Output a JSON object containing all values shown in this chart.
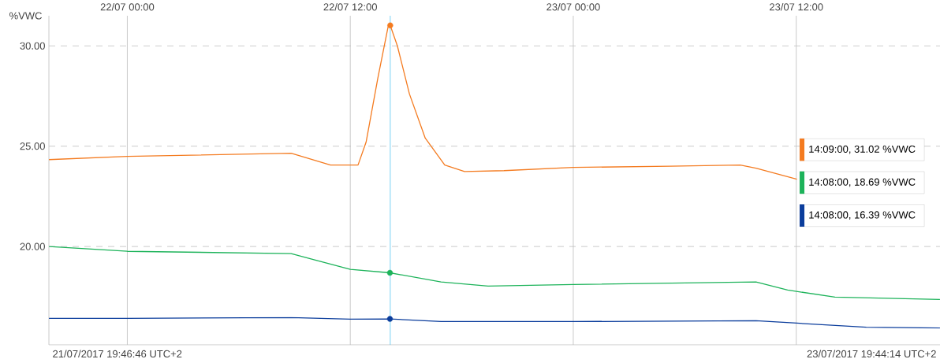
{
  "chart_data": {
    "type": "line",
    "ylabel": "%VWC",
    "series": [
      {
        "color": "#f47b20",
        "x": [
          "2017-07-21T19:47",
          "2017-07-22T00:00",
          "2017-07-22T08:49",
          "2017-07-22T10:56",
          "2017-07-22T12:25",
          "2017-07-22T12:51",
          "2017-07-22T13:29",
          "2017-07-22T14:02",
          "2017-07-22T14:09",
          "2017-07-22T14:32",
          "2017-07-22T15:11",
          "2017-07-22T16:02",
          "2017-07-22T17:05",
          "2017-07-22T18:09",
          "2017-07-22T20:16",
          "2017-07-23T00:00",
          "2017-07-23T05:10",
          "2017-07-23T08:59",
          "2017-07-23T09:50",
          "2017-07-23T12:02"
        ],
        "values": [
          24.33,
          24.49,
          24.65,
          24.06,
          24.06,
          25.2,
          28.4,
          30.95,
          31.02,
          30.0,
          27.6,
          25.4,
          24.06,
          23.74,
          23.78,
          23.94,
          24.0,
          24.06,
          23.9,
          23.35
        ]
      },
      {
        "color": "#1db35a",
        "x": [
          "2017-07-21T19:47",
          "2017-07-22T00:00",
          "2017-07-22T08:49",
          "2017-07-22T10:05",
          "2017-07-22T12:00",
          "2017-07-22T14:08",
          "2017-07-22T16:53",
          "2017-07-22T19:25",
          "2017-07-23T00:00",
          "2017-07-23T09:50",
          "2017-07-23T11:32",
          "2017-07-23T14:05",
          "2017-07-23T19:44"
        ],
        "values": [
          20.0,
          19.76,
          19.65,
          19.33,
          18.86,
          18.69,
          18.23,
          18.03,
          18.11,
          18.23,
          17.83,
          17.48,
          17.36
        ]
      },
      {
        "color": "#0b3d9c",
        "x": [
          "2017-07-21T19:47",
          "2017-07-22T00:00",
          "2017-07-22T08:49",
          "2017-07-22T12:00",
          "2017-07-22T14:08",
          "2017-07-22T16:53",
          "2017-07-23T00:00",
          "2017-07-23T09:50",
          "2017-07-23T12:02",
          "2017-07-23T15:46",
          "2017-07-23T19:44"
        ],
        "values": [
          16.42,
          16.42,
          16.46,
          16.38,
          16.39,
          16.26,
          16.26,
          16.3,
          16.18,
          15.98,
          15.94
        ]
      },
      {
        "type": "scatter",
        "x": [
          "2017-07-22T14:09",
          "2017-07-22T14:08",
          "2017-07-22T14:08"
        ],
        "values": [
          31.02,
          18.69,
          16.39
        ],
        "colors": [
          "#f47b20",
          "#1db35a",
          "#0b3d9c"
        ]
      }
    ],
    "xlim": [
      "2017-07-21T19:46:46",
      "2017-07-23T19:44:14"
    ],
    "xticks": [
      {
        "value": "2017-07-22T00:00",
        "label": "22/07 00:00"
      },
      {
        "value": "2017-07-22T12:00",
        "label": "22/07 12:00"
      },
      {
        "value": "2017-07-23T00:00",
        "label": "23/07 00:00"
      },
      {
        "value": "2017-07-23T12:00",
        "label": "23/07 12:00"
      }
    ],
    "ylim": [
      15.1,
      31.5
    ],
    "yticks": [
      {
        "value": 20,
        "label": "20.00"
      },
      {
        "value": 25,
        "label": "25.00"
      },
      {
        "value": 30,
        "label": "30.00"
      }
    ],
    "grid": true,
    "line_style": "solid",
    "marker": "none",
    "ref_lines": [
      {
        "axis": "x",
        "value": "2017-07-22T14:09",
        "color": "#5bc8f0"
      }
    ],
    "annotations": [
      "14:09:00, 31.02 %VWC",
      "14:08:00, 18.69 %VWC",
      "14:08:00, 16.39 %VWC",
      "21/07/2017 19:46:46 UTC+2",
      "23/07/2017 19:44:14 UTC+2"
    ]
  }
}
